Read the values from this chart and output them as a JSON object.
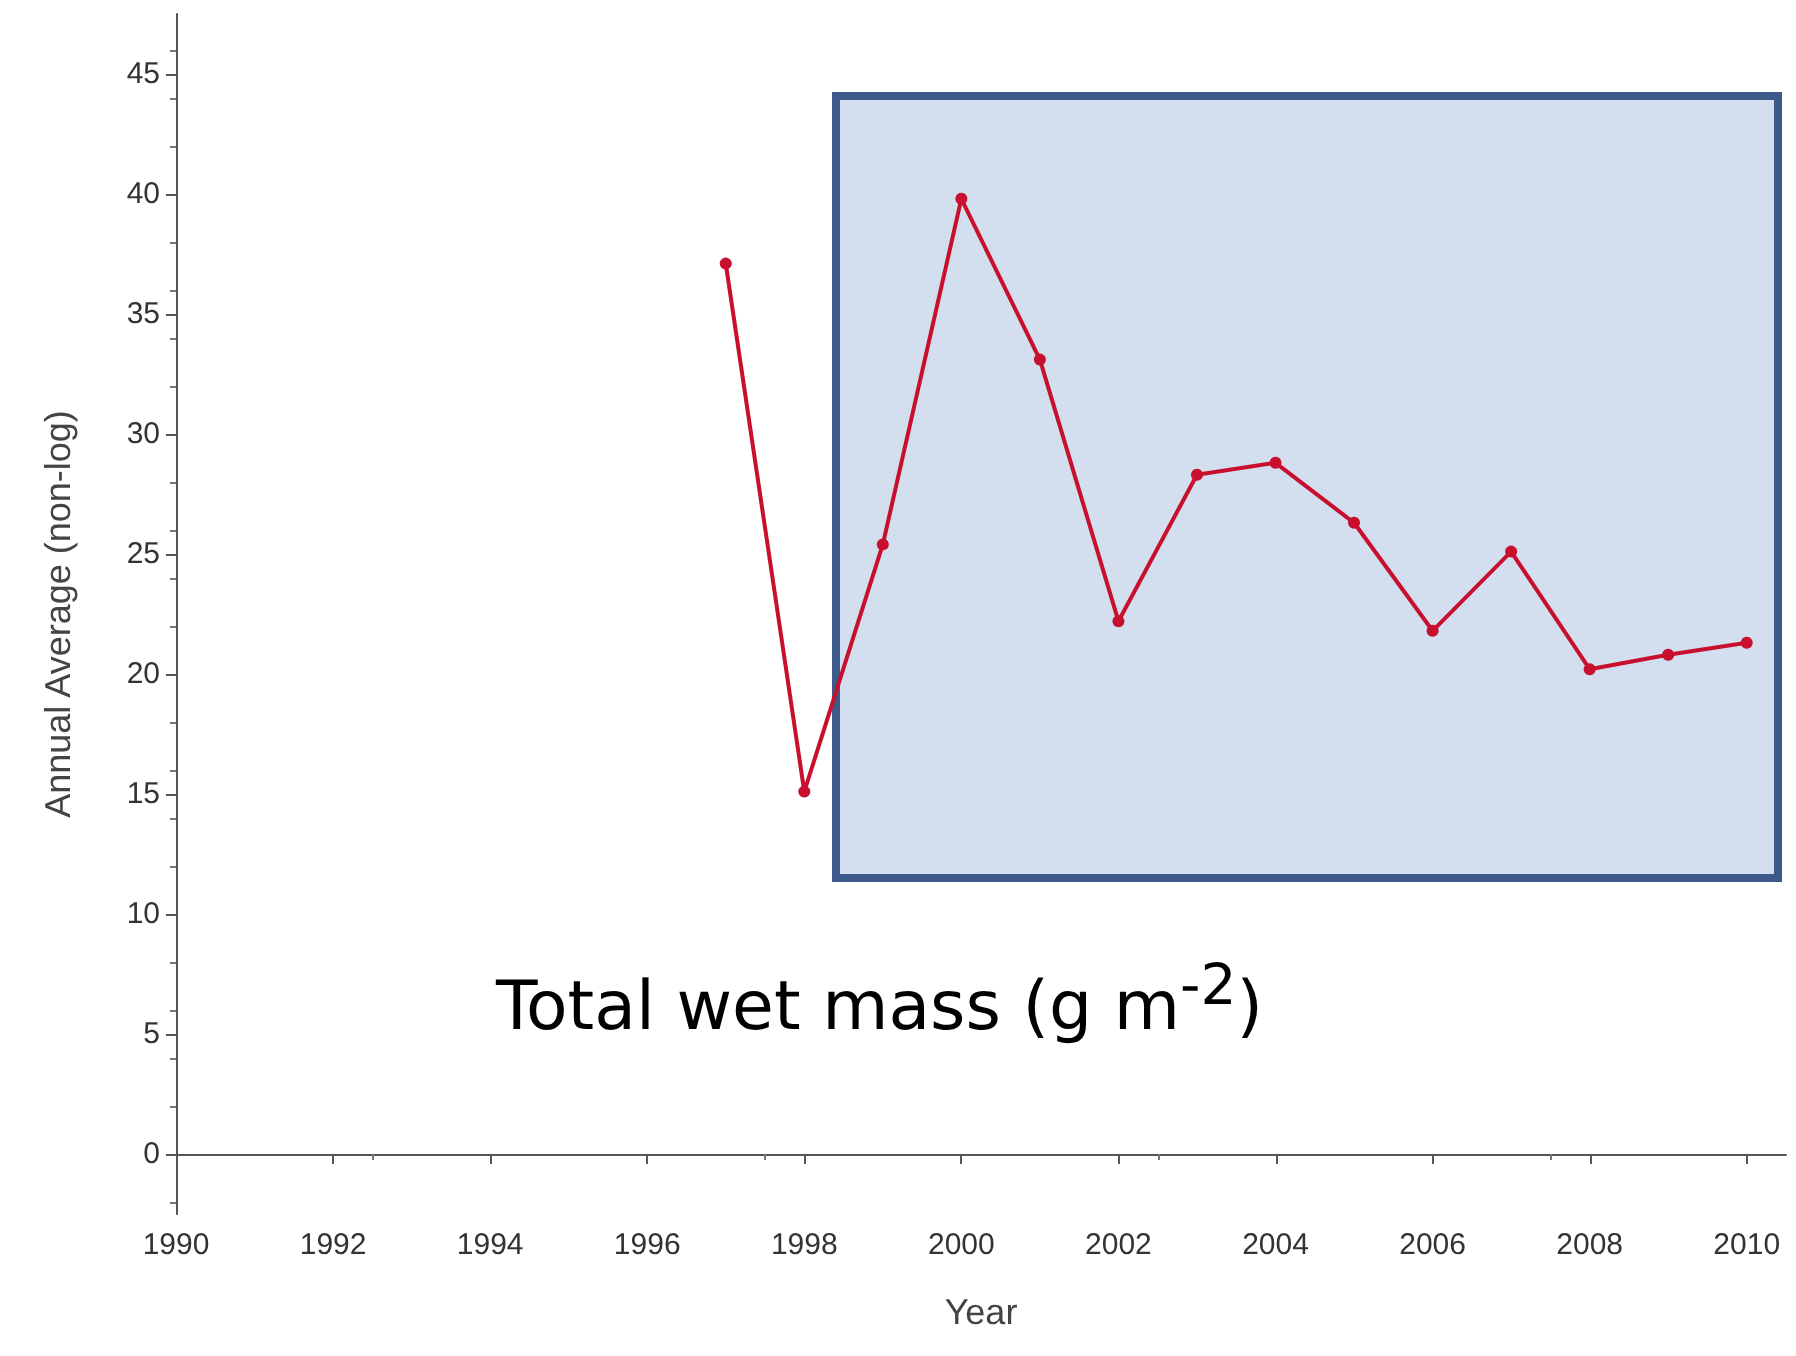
{
  "chart_data": {
    "type": "line",
    "xlabel": "Year",
    "ylabel": "Annual Average (non-log)",
    "annotations": [
      "Total wet mass (g m$^{-2}$)"
    ],
    "series": [
      {
        "color": "#c8102e",
        "x": [
          1997,
          1998,
          1999,
          2000,
          2001,
          2002,
          2003,
          2004,
          2005,
          2006,
          2007,
          2008,
          2009,
          2010
        ],
        "values": [
          37.1,
          15.1,
          25.4,
          39.8,
          33.1,
          22.2,
          28.3,
          28.8,
          26.3,
          21.8,
          25.1,
          20.2,
          20.8,
          21.3
        ]
      }
    ],
    "xlim": [
      1990,
      2010.5
    ],
    "xticks": [
      1990,
      1992,
      1994,
      1996,
      1998,
      2000,
      2002,
      2004,
      2006,
      2008,
      2010
    ],
    "ylim": [
      -2.5,
      47.5
    ],
    "yticks": [
      0,
      5,
      10,
      15,
      20,
      25,
      30,
      35,
      40,
      45
    ],
    "grid": false,
    "marker": "circle",
    "line_style": "solid"
  }
}
